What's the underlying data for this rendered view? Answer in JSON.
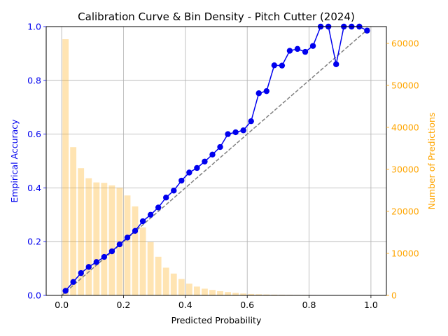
{
  "chart_data": {
    "type": "line",
    "title": "Calibration Curve & Bin Density - Pitch Cutter (2024)",
    "xlabel": "Predicted Probability",
    "ylabel_left": "Empirical Accuracy",
    "ylabel_right": "Number of Predictions",
    "xlim": [
      -0.05,
      1.05
    ],
    "ylim_left": [
      0,
      1.0
    ],
    "ylim_right": [
      0,
      64000
    ],
    "grid": true,
    "x_ticks": [
      "0.0",
      "0.2",
      "0.4",
      "0.6",
      "0.8",
      "1.0"
    ],
    "x_tick_values": [
      0.0,
      0.2,
      0.4,
      0.6,
      0.8,
      1.0
    ],
    "y_left_ticks": [
      "0.0",
      "0.2",
      "0.4",
      "0.6",
      "0.8",
      "1.0"
    ],
    "y_left_tick_values": [
      0.0,
      0.2,
      0.4,
      0.6,
      0.8,
      1.0
    ],
    "y_right_ticks": [
      "0",
      "10000",
      "20000",
      "30000",
      "40000",
      "50000",
      "60000"
    ],
    "y_right_tick_values": [
      0,
      10000,
      20000,
      30000,
      40000,
      50000,
      60000
    ],
    "bin_width": 0.02,
    "series": [
      {
        "type": "bar",
        "axis": "right",
        "x": [
          0.0125,
          0.0375,
          0.0625,
          0.0875,
          0.1125,
          0.1375,
          0.1625,
          0.1875,
          0.2125,
          0.2375,
          0.2625,
          0.2875,
          0.3125,
          0.3375,
          0.3625,
          0.3875,
          0.4125,
          0.4375,
          0.4625,
          0.4875,
          0.5125,
          0.5375,
          0.5625,
          0.5875,
          0.6125,
          0.6375,
          0.6625,
          0.6875,
          0.7125,
          0.7375,
          0.7625,
          0.7875,
          0.8125,
          0.8375,
          0.8625,
          0.8875,
          0.9125,
          0.9375,
          0.9625,
          0.9875
        ],
        "values": [
          61000,
          35300,
          30300,
          27900,
          26900,
          26800,
          26200,
          25600,
          23800,
          21200,
          16200,
          12700,
          9200,
          6600,
          5200,
          3900,
          2800,
          2100,
          1600,
          1300,
          1000,
          800,
          600,
          450,
          350,
          280,
          220,
          180,
          150,
          130,
          110,
          100,
          90,
          80,
          70,
          60,
          55,
          50,
          45,
          40
        ]
      },
      {
        "type": "line",
        "axis": "left",
        "x": [
          0.0125,
          0.0375,
          0.0625,
          0.0875,
          0.1125,
          0.1375,
          0.1625,
          0.1875,
          0.2125,
          0.2375,
          0.2625,
          0.2875,
          0.3125,
          0.3375,
          0.3625,
          0.3875,
          0.4125,
          0.4375,
          0.4625,
          0.4875,
          0.5125,
          0.5375,
          0.5625,
          0.5875,
          0.6125,
          0.6375,
          0.6625,
          0.6875,
          0.7125,
          0.7375,
          0.7625,
          0.7875,
          0.8125,
          0.8375,
          0.8625,
          0.8875,
          0.9125,
          0.9375,
          0.9625,
          0.9875
        ],
        "values": [
          0.017,
          0.05,
          0.083,
          0.106,
          0.124,
          0.143,
          0.164,
          0.19,
          0.215,
          0.24,
          0.276,
          0.3,
          0.327,
          0.364,
          0.39,
          0.427,
          0.457,
          0.474,
          0.498,
          0.524,
          0.552,
          0.6,
          0.607,
          0.614,
          0.648,
          0.752,
          0.76,
          0.856,
          0.855,
          0.91,
          0.917,
          0.906,
          0.928,
          1.0,
          1.0,
          0.86,
          1.0,
          1.0,
          1.0,
          0.985
        ]
      },
      {
        "type": "reference",
        "axis": "left",
        "x": [
          0.0,
          1.0
        ],
        "values": [
          0.0,
          1.0
        ]
      }
    ],
    "colors": {
      "line": "#0000ee",
      "bar": "#ffa500",
      "reference": "#808080",
      "grid": "#b0b0b0",
      "left_axis": "#0000ee",
      "right_axis": "#ffa500"
    }
  }
}
